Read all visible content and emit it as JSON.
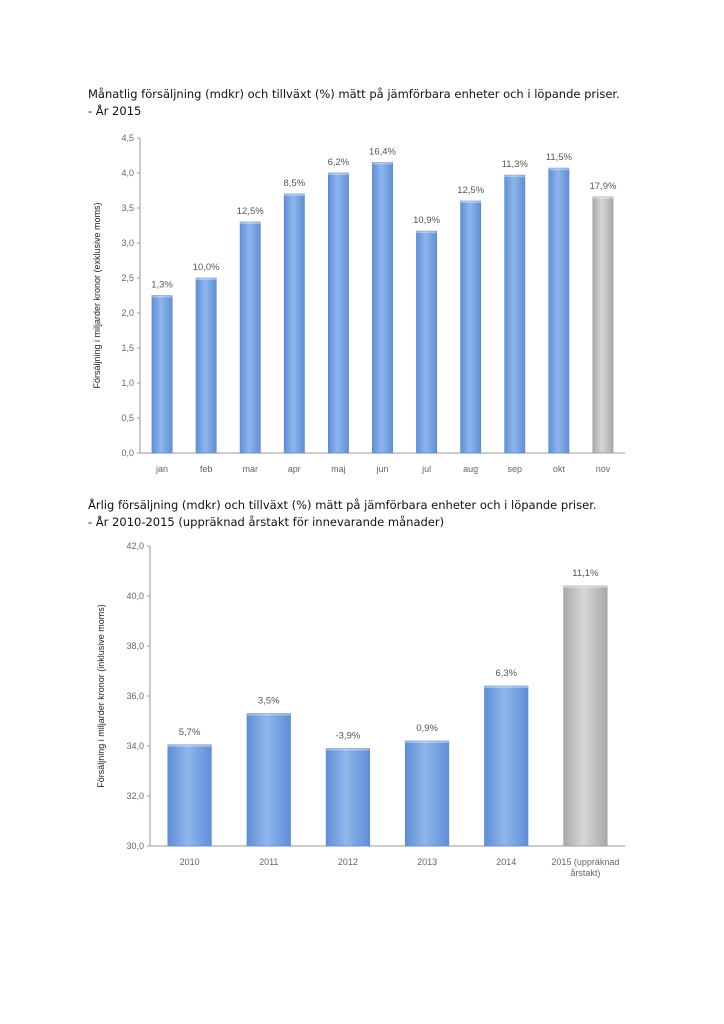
{
  "captions": {
    "monthly_line1": "Månatlig försäljning (mdkr) och tillväxt (%) mätt på jämförbara enheter och i löpande priser.",
    "monthly_line2": "- År 2015",
    "annual_line1": "Årlig försäljning (mdkr) och tillväxt (%) mätt på jämförbara enheter och i löpande priser.",
    "annual_line2": "- År 2010-2015 (uppräknad årstakt för innevarande månader)"
  },
  "colors": {
    "bar_actual": "#8fb6ec",
    "bar_actual_dark": "#5f8fd6",
    "bar_projected": "#d7d7d7",
    "bar_projected_dark": "#a8a8a8",
    "axis": "#9a9a9a"
  },
  "chart_data": [
    {
      "type": "bar",
      "title": "",
      "xlabel": "",
      "ylabel": "Försäljning i miljarder kronor (exklusive moms)",
      "ylim": [
        0,
        4.5
      ],
      "yticks": [
        0,
        0.5,
        1.0,
        1.5,
        2.0,
        2.5,
        3.0,
        3.5,
        4.0,
        4.5
      ],
      "ytick_labels": [
        "0,0",
        "0,5",
        "1,0",
        "1,5",
        "2,0",
        "2,5",
        "3,0",
        "3,5",
        "4,0",
        "4,5"
      ],
      "categories": [
        "jan",
        "feb",
        "mar",
        "apr",
        "maj",
        "jun",
        "jul",
        "aug",
        "sep",
        "okt",
        "nov"
      ],
      "values": [
        2.25,
        2.5,
        3.3,
        3.7,
        4.0,
        4.15,
        3.17,
        3.6,
        3.97,
        4.07,
        3.66
      ],
      "labels": [
        "1,3%",
        "10,0%",
        "12,5%",
        "8,5%",
        "6,2%",
        "16,4%",
        "10,9%",
        "12,5%",
        "11,3%",
        "11,5%",
        "17,9%"
      ],
      "projected": [
        false,
        false,
        false,
        false,
        false,
        false,
        false,
        false,
        false,
        false,
        true
      ]
    },
    {
      "type": "bar",
      "title": "",
      "xlabel": "",
      "ylabel": "Försäljning i miljarder kronor (inklusive moms)",
      "ylim": [
        30,
        42
      ],
      "yticks": [
        30,
        32,
        34,
        36,
        38,
        40,
        42
      ],
      "ytick_labels": [
        "30,0",
        "32,0",
        "34,0",
        "36,0",
        "38,0",
        "40,0",
        "42,0"
      ],
      "categories": [
        "2010",
        "2011",
        "2012",
        "2013",
        "2014",
        "2015 (uppräknad årstakt)"
      ],
      "category_lines": [
        [
          "2010"
        ],
        [
          "2011"
        ],
        [
          "2012"
        ],
        [
          "2013"
        ],
        [
          "2014"
        ],
        [
          "2015 (uppräknad",
          "årstakt)"
        ]
      ],
      "values": [
        34.05,
        35.3,
        33.9,
        34.2,
        36.4,
        40.4
      ],
      "labels": [
        "5,7%",
        "3,5%",
        "-3,9%",
        "0,9%",
        "6,3%",
        "11,1%"
      ],
      "projected": [
        false,
        false,
        false,
        false,
        false,
        true
      ]
    }
  ]
}
